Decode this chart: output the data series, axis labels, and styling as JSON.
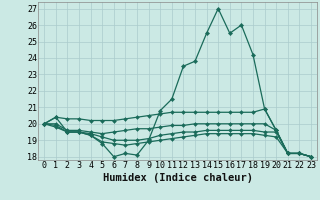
{
  "xlabel": "Humidex (Indice chaleur)",
  "background_color": "#cbe9e4",
  "grid_color": "#aacccc",
  "line_color": "#1a6b5a",
  "xlim": [
    -0.5,
    23.5
  ],
  "ylim": [
    17.8,
    27.4
  ],
  "xticks": [
    0,
    1,
    2,
    3,
    4,
    5,
    6,
    7,
    8,
    9,
    10,
    11,
    12,
    13,
    14,
    15,
    16,
    17,
    18,
    19,
    20,
    21,
    22,
    23
  ],
  "yticks": [
    18,
    19,
    20,
    21,
    22,
    23,
    24,
    25,
    26,
    27
  ],
  "lines": [
    [
      20.0,
      20.4,
      19.5,
      19.5,
      19.3,
      18.8,
      18.0,
      18.2,
      18.1,
      19.0,
      20.8,
      21.5,
      23.5,
      23.8,
      25.5,
      27.0,
      25.5,
      26.0,
      24.2,
      20.9,
      19.6,
      18.2,
      18.2,
      18.0
    ],
    [
      20.0,
      20.4,
      20.3,
      20.3,
      20.2,
      20.2,
      20.2,
      20.3,
      20.4,
      20.5,
      20.6,
      20.7,
      20.7,
      20.7,
      20.7,
      20.7,
      20.7,
      20.7,
      20.7,
      20.9,
      19.6,
      18.2,
      18.2,
      18.0
    ],
    [
      20.0,
      20.0,
      19.6,
      19.6,
      19.5,
      19.4,
      19.5,
      19.6,
      19.7,
      19.7,
      19.8,
      19.9,
      19.9,
      20.0,
      20.0,
      20.0,
      20.0,
      20.0,
      20.0,
      20.0,
      19.6,
      18.2,
      18.2,
      18.0
    ],
    [
      20.0,
      19.9,
      19.5,
      19.5,
      19.4,
      19.2,
      19.0,
      19.0,
      19.0,
      19.1,
      19.3,
      19.4,
      19.5,
      19.5,
      19.6,
      19.6,
      19.6,
      19.6,
      19.6,
      19.5,
      19.5,
      18.2,
      18.2,
      18.0
    ],
    [
      20.0,
      19.8,
      19.5,
      19.5,
      19.3,
      18.9,
      18.8,
      18.7,
      18.8,
      18.9,
      19.0,
      19.1,
      19.2,
      19.3,
      19.4,
      19.4,
      19.4,
      19.4,
      19.4,
      19.3,
      19.2,
      18.2,
      18.2,
      18.0
    ]
  ],
  "marker_line_idx": 0,
  "tick_fontsize": 6.0,
  "xlabel_fontsize": 7.5
}
